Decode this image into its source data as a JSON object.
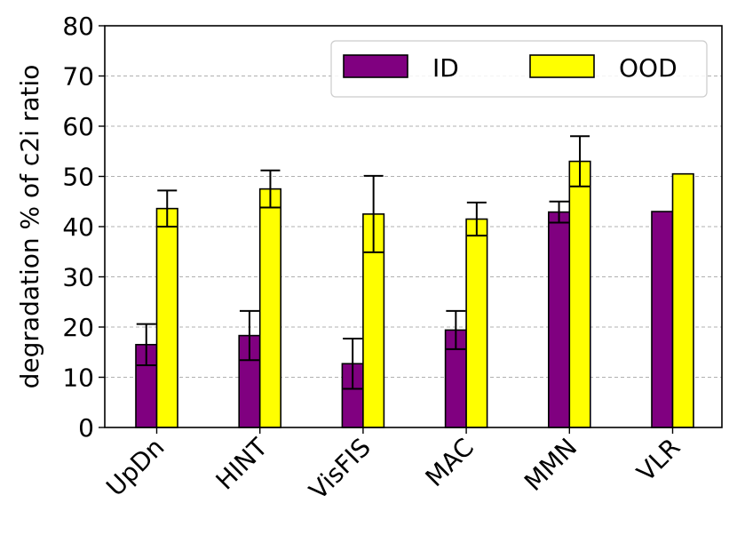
{
  "chart_data": {
    "type": "bar",
    "ylabel": "degradation % of c2i ratio",
    "xlabel": "",
    "categories": [
      "UpDn",
      "HINT",
      "VisFIS",
      "MAC",
      "MMN",
      "VLR"
    ],
    "ylim": [
      0,
      80
    ],
    "yticks": [
      0,
      10,
      20,
      30,
      40,
      50,
      60,
      70,
      80
    ],
    "grid": "horizontal dashed",
    "legend_position": "top-right",
    "series": [
      {
        "name": "ID",
        "color": "#800080",
        "values": [
          16.5,
          18.3,
          12.7,
          19.4,
          42.9,
          43.0
        ],
        "errors": [
          4.1,
          4.9,
          5.0,
          3.8,
          2.1,
          null
        ]
      },
      {
        "name": "OOD",
        "color": "#ffff00",
        "values": [
          43.6,
          47.5,
          42.5,
          41.5,
          53.0,
          50.5
        ],
        "errors": [
          3.6,
          3.7,
          7.6,
          3.3,
          5.0,
          null
        ]
      }
    ]
  }
}
